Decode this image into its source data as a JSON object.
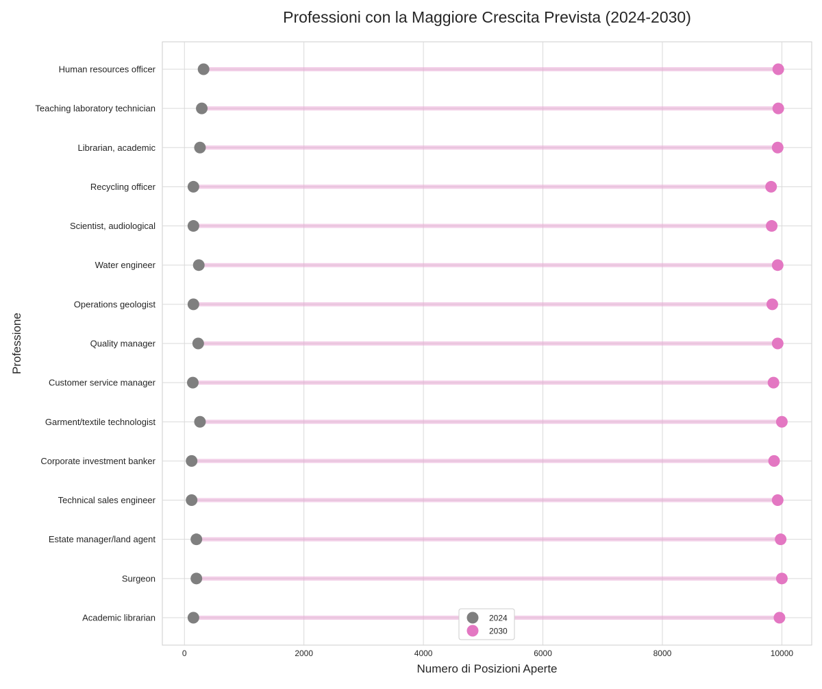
{
  "chart_data": {
    "type": "lollipop-dumbbell",
    "title": "Professioni con la Maggiore Crescita Prevista (2024-2030)",
    "xlabel": "Numero di Posizioni Aperte",
    "ylabel": "Professione",
    "xlim": [
      -370,
      10500
    ],
    "xticks": [
      0,
      2000,
      4000,
      6000,
      8000,
      10000
    ],
    "grid": true,
    "legend_position": "bottom-center",
    "categories": [
      "Human resources officer",
      "Teaching laboratory technician",
      "Librarian, academic",
      "Recycling officer",
      "Scientist, audiological",
      "Water engineer",
      "Operations geologist",
      "Quality manager",
      "Customer service manager",
      "Garment/textile technologist",
      "Corporate investment banker",
      "Technical sales engineer",
      "Estate manager/land agent",
      "Surgeon",
      "Academic librarian"
    ],
    "series": [
      {
        "name": "2024",
        "color": "#7f7f7f",
        "values": [
          320,
          290,
          260,
          150,
          150,
          240,
          150,
          230,
          140,
          260,
          120,
          120,
          200,
          200,
          150
        ]
      },
      {
        "name": "2030",
        "color": "#e377c2",
        "values": [
          9940,
          9940,
          9930,
          9820,
          9830,
          9930,
          9840,
          9930,
          9860,
          10000,
          9870,
          9930,
          9980,
          10000,
          9960
        ]
      }
    ],
    "connector_color": "#e8a5d3"
  }
}
